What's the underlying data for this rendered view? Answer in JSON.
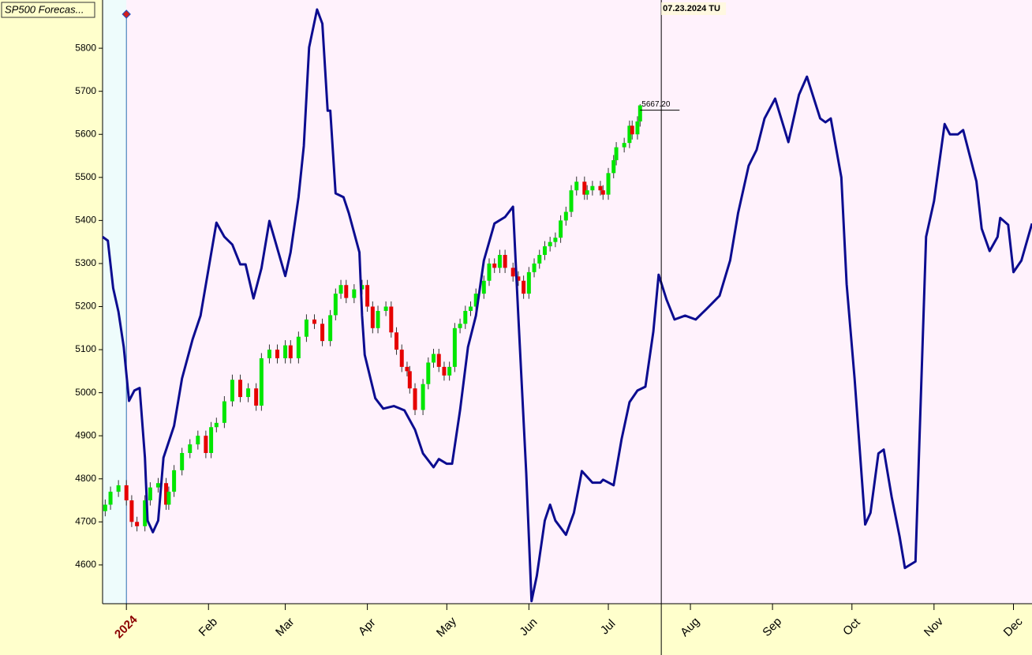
{
  "chart_data": {
    "type": "candlestick",
    "title": "SP500 Forecas...",
    "x": [
      -8,
      -6,
      -3,
      0,
      2,
      4,
      7,
      9,
      12,
      15,
      16,
      18,
      21,
      24,
      27,
      30,
      32,
      34,
      37,
      40,
      43,
      46,
      49,
      51,
      54,
      57,
      60,
      62,
      65,
      68,
      71,
      74,
      77,
      79,
      81,
      83,
      86,
      89,
      91,
      93,
      95,
      98,
      100,
      102,
      104,
      106,
      107,
      109,
      112,
      114,
      116,
      118,
      120,
      122,
      124,
      126,
      128,
      130,
      132,
      135,
      137,
      139,
      141,
      143,
      146,
      148,
      150,
      152,
      154,
      156,
      158,
      160,
      162,
      164,
      166,
      168,
      170,
      173,
      174,
      176,
      179,
      180,
      182,
      184,
      185,
      188,
      190,
      191,
      193,
      194
    ],
    "open": [
      4725,
      4740,
      4770,
      4785,
      4750,
      4700,
      4690,
      4750,
      4780,
      4790,
      4740,
      4770,
      4820,
      4860,
      4880,
      4900,
      4860,
      4920,
      4930,
      4980,
      5030,
      4990,
      5010,
      4970,
      5080,
      5100,
      5080,
      5110,
      5080,
      5130,
      5170,
      5160,
      5120,
      5180,
      5230,
      5250,
      5220,
      5240,
      5250,
      5200,
      5150,
      5190,
      5200,
      5140,
      5100,
      5060,
      5050,
      5010,
      4960,
      5020,
      5070,
      5090,
      5060,
      5040,
      5060,
      5150,
      5160,
      5190,
      5200,
      5230,
      5260,
      5300,
      5290,
      5320,
      5290,
      5270,
      5260,
      5230,
      5280,
      5300,
      5320,
      5340,
      5350,
      5360,
      5400,
      5420,
      5470,
      5490,
      5460,
      5470,
      5480,
      5470,
      5460,
      5510,
      5540,
      5570,
      5580,
      5620,
      5600,
      5630
    ],
    "high": [
      4752,
      4782,
      4797,
      4797,
      4762,
      4712,
      4762,
      4792,
      4802,
      4802,
      4782,
      4832,
      4872,
      4892,
      4912,
      4912,
      4932,
      4942,
      4992,
      5042,
      5042,
      5022,
      5022,
      5092,
      5112,
      5112,
      5122,
      5122,
      5142,
      5182,
      5182,
      5172,
      5192,
      5242,
      5262,
      5262,
      5252,
      5262,
      5262,
      5212,
      5202,
      5212,
      5212,
      5152,
      5112,
      5072,
      5062,
      5022,
      5032,
      5082,
      5102,
      5102,
      5072,
      5072,
      5162,
      5172,
      5202,
      5212,
      5242,
      5272,
      5312,
      5312,
      5332,
      5332,
      5302,
      5282,
      5272,
      5292,
      5312,
      5332,
      5352,
      5362,
      5372,
      5412,
      5432,
      5482,
      5502,
      5502,
      5482,
      5492,
      5492,
      5482,
      5522,
      5552,
      5582,
      5592,
      5632,
      5632,
      5642,
      5670
    ],
    "low": [
      4713,
      4728,
      4758,
      4738,
      4688,
      4678,
      4678,
      4738,
      4768,
      4728,
      4728,
      4758,
      4808,
      4848,
      4868,
      4848,
      4848,
      4908,
      4918,
      4968,
      4978,
      4978,
      4958,
      4958,
      5068,
      5068,
      5068,
      5068,
      5068,
      5118,
      5148,
      5108,
      5108,
      5168,
      5218,
      5208,
      5208,
      5228,
      5188,
      5138,
      5138,
      5178,
      5128,
      5088,
      5048,
      5038,
      4998,
      4948,
      4948,
      5008,
      5058,
      5048,
      5028,
      5028,
      5048,
      5138,
      5148,
      5178,
      5188,
      5218,
      5248,
      5278,
      5278,
      5278,
      5258,
      5248,
      5218,
      5218,
      5268,
      5288,
      5308,
      5328,
      5338,
      5348,
      5388,
      5408,
      5458,
      5448,
      5448,
      5458,
      5458,
      5448,
      5448,
      5498,
      5528,
      5558,
      5568,
      5588,
      5588,
      5618
    ],
    "close": [
      4740,
      4770,
      4785,
      4750,
      4700,
      4690,
      4750,
      4780,
      4790,
      4740,
      4770,
      4820,
      4860,
      4880,
      4900,
      4860,
      4920,
      4930,
      4980,
      5030,
      4990,
      5010,
      4970,
      5080,
      5100,
      5080,
      5110,
      5080,
      5130,
      5170,
      5160,
      5120,
      5180,
      5230,
      5250,
      5220,
      5240,
      5250,
      5200,
      5150,
      5190,
      5200,
      5140,
      5100,
      5060,
      5050,
      5010,
      4960,
      5020,
      5070,
      5090,
      5060,
      5040,
      5060,
      5150,
      5160,
      5190,
      5200,
      5230,
      5260,
      5300,
      5290,
      5320,
      5290,
      5270,
      5260,
      5230,
      5280,
      5300,
      5320,
      5340,
      5350,
      5360,
      5400,
      5420,
      5470,
      5490,
      5460,
      5470,
      5480,
      5470,
      5460,
      5510,
      5540,
      5570,
      5580,
      5620,
      5600,
      5630,
      5667.2
    ],
    "up_color": "#00e600",
    "down_color": "#e60000",
    "last_label": "5667.20",
    "lines": [
      {
        "color": "#0c0c90",
        "x": [
          -9,
          -7,
          -5,
          -3,
          -1,
          1,
          3,
          5,
          7,
          8,
          10,
          12,
          14,
          18,
          21,
          25,
          28,
          34,
          37,
          40,
          43,
          45,
          48,
          51,
          54,
          60,
          62,
          65,
          67,
          69,
          72,
          74,
          76,
          77,
          79,
          82,
          84,
          88,
          89,
          90,
          94,
          97,
          101,
          105,
          109,
          112,
          116,
          118,
          121,
          123,
          126,
          129,
          132,
          135,
          139,
          143,
          146,
          148,
          151,
          153,
          155,
          158,
          160,
          162,
          166,
          169,
          172,
          176,
          179,
          180,
          184,
          187,
          190,
          193,
          196,
          199,
          201,
          204,
          207,
          211,
          215,
          219,
          224,
          228,
          231,
          235,
          238,
          241,
          245,
          250,
          254,
          257,
          262,
          264,
          266,
          270,
          272,
          275,
          279,
          281,
          284,
          286,
          289,
          292,
          294,
          298,
          302,
          305,
          309,
          311,
          314,
          316,
          321,
          323,
          326,
          329,
          330,
          333,
          335,
          338,
          342
        ],
        "values": [
          5362,
          5353,
          5243,
          5188,
          5106,
          4981,
          5005,
          5011,
          4849,
          4703,
          4676,
          4703,
          4849,
          4923,
          5033,
          5124,
          5179,
          5395,
          5362,
          5344,
          5298,
          5298,
          5219,
          5289,
          5399,
          5271,
          5326,
          5454,
          5573,
          5802,
          5890,
          5857,
          5655,
          5655,
          5463,
          5454,
          5417,
          5326,
          5179,
          5088,
          4987,
          4963,
          4969,
          4959,
          4914,
          4859,
          4827,
          4846,
          4835,
          4835,
          4959,
          5106,
          5179,
          5307,
          5393,
          5408,
          5432,
          5179,
          4813,
          4516,
          4575,
          4703,
          4740,
          4703,
          4670,
          4721,
          4818,
          4791,
          4791,
          4798,
          4785,
          4892,
          4978,
          5005,
          5014,
          5142,
          5274,
          5216,
          5170,
          5179,
          5170,
          5194,
          5225,
          5307,
          5417,
          5527,
          5564,
          5637,
          5683,
          5582,
          5692,
          5734,
          5637,
          5628,
          5637,
          5500,
          5252,
          5033,
          4694,
          4721,
          4859,
          4868,
          4758,
          4666,
          4593,
          4608,
          5362,
          5445,
          5624,
          5600,
          5600,
          5610,
          5491,
          5381,
          5329,
          5362,
          5406,
          5390,
          5280,
          5307,
          5393
        ]
      }
    ],
    "xlim": [
      -9,
      342
    ],
    "ylim": [
      4510,
      5912
    ],
    "xticks": [
      {
        "value": 0,
        "label": "2024"
      },
      {
        "value": 31,
        "label": "Feb"
      },
      {
        "value": 60,
        "label": "Mar"
      },
      {
        "value": 91,
        "label": "Apr"
      },
      {
        "value": 121,
        "label": "May"
      },
      {
        "value": 152,
        "label": "Jun"
      },
      {
        "value": 182,
        "label": "Jul"
      },
      {
        "value": 213,
        "label": "Aug"
      },
      {
        "value": 244,
        "label": "Sep"
      },
      {
        "value": 274,
        "label": "Oct"
      },
      {
        "value": 305,
        "label": "Nov"
      },
      {
        "value": 335,
        "label": "Dec"
      }
    ],
    "yticks": [
      4600,
      4700,
      4800,
      4900,
      5000,
      5100,
      5200,
      5300,
      5400,
      5500,
      5600,
      5700,
      5800
    ],
    "annotations": [
      {
        "text": "07.23.2024 TU",
        "x": 202
      }
    ]
  }
}
